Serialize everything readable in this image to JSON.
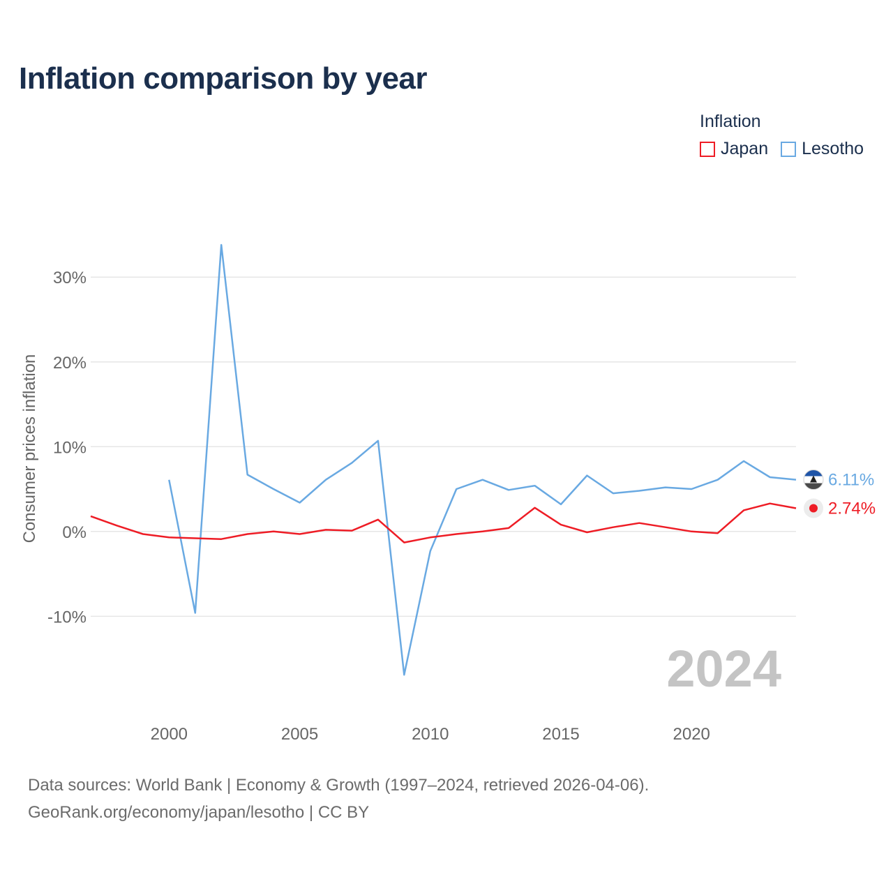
{
  "title": "Inflation comparison by year",
  "legend": {
    "title": "Inflation",
    "items": [
      {
        "label": "Japan",
        "color": "#ee1c25"
      },
      {
        "label": "Lesotho",
        "color": "#69a9e2"
      }
    ]
  },
  "footer": {
    "line1": "Data sources: World Bank | Economy & Growth (1997–2024, retrieved 2026-04-06).",
    "line2": "GeoRank.org/economy/japan/lesotho | CC BY"
  },
  "chart_data": {
    "type": "line",
    "title": "Inflation comparison by year",
    "ylabel": "Consumer prices inflation",
    "xlabel": "",
    "xlim": [
      1997,
      2024
    ],
    "ylim": [
      -19.6,
      38
    ],
    "yticks": [
      -10,
      0,
      10,
      20,
      30
    ],
    "ytick_labels": [
      "-10%",
      "0%",
      "10%",
      "20%",
      "30%"
    ],
    "xticks": [
      2000,
      2005,
      2010,
      2015,
      2020
    ],
    "xtick_labels": [
      "2000",
      "2005",
      "2010",
      "2015",
      "2020"
    ],
    "year_watermark": "2024",
    "series": [
      {
        "name": "Japan",
        "color": "#ee1c25",
        "x": [
          1997,
          1998,
          1999,
          2000,
          2001,
          2002,
          2003,
          2004,
          2005,
          2006,
          2007,
          2008,
          2009,
          2010,
          2011,
          2012,
          2013,
          2014,
          2015,
          2016,
          2017,
          2018,
          2019,
          2020,
          2021,
          2022,
          2023,
          2024
        ],
        "values": [
          1.8,
          0.7,
          -0.3,
          -0.7,
          -0.8,
          -0.9,
          -0.3,
          0.0,
          -0.3,
          0.2,
          0.1,
          1.4,
          -1.3,
          -0.7,
          -0.3,
          0.0,
          0.4,
          2.8,
          0.8,
          -0.1,
          0.5,
          1.0,
          0.5,
          0.0,
          -0.2,
          2.5,
          3.3,
          2.74
        ],
        "end_label": "2.74%"
      },
      {
        "name": "Lesotho",
        "color": "#69a9e2",
        "x": [
          2000,
          2001,
          2002,
          2003,
          2004,
          2005,
          2006,
          2007,
          2008,
          2009,
          2010,
          2011,
          2012,
          2013,
          2014,
          2015,
          2016,
          2017,
          2018,
          2019,
          2020,
          2021,
          2022,
          2023,
          2024
        ],
        "values": [
          6.1,
          -9.6,
          33.8,
          6.7,
          5.0,
          3.4,
          6.1,
          8.1,
          10.7,
          -16.9,
          -2.3,
          5.0,
          6.1,
          4.9,
          5.4,
          3.2,
          6.6,
          4.5,
          4.8,
          5.2,
          5.0,
          6.1,
          8.3,
          6.4,
          6.11
        ],
        "end_label": "6.11%"
      }
    ]
  }
}
